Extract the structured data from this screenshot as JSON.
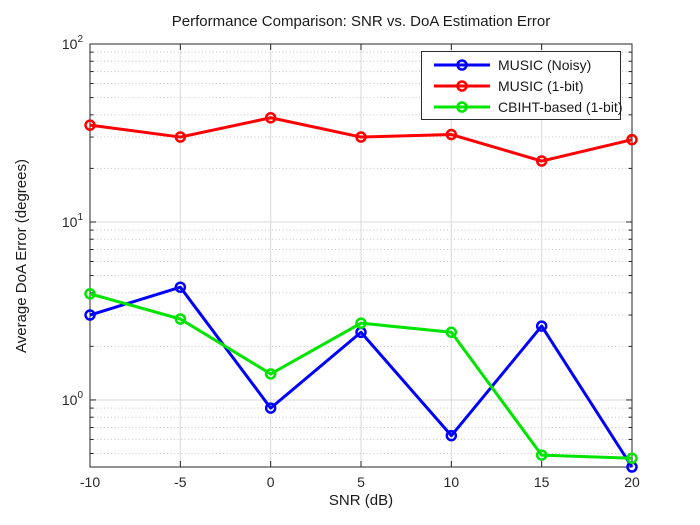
{
  "chart_data": {
    "type": "line",
    "title": "Performance Comparison: SNR vs. DoA Estimation Error",
    "xlabel": "SNR (dB)",
    "ylabel": "Average DoA Error (degrees)",
    "x": [
      -10,
      -5,
      0,
      5,
      10,
      15,
      20
    ],
    "x_ticks": [
      -10,
      -5,
      0,
      5,
      10,
      15,
      20
    ],
    "x_tick_labels": [
      "-10",
      "-5",
      "0",
      "5",
      "10",
      "15",
      "20"
    ],
    "xlim": [
      -10,
      20
    ],
    "y_scale": "log",
    "ylim": [
      0.42,
      100
    ],
    "y_major_ticks": [
      1,
      10,
      100
    ],
    "y_tick_labels": [
      "10^0",
      "10^1",
      "10^2"
    ],
    "grid": true,
    "minor_grid": true,
    "legend_position": "top-right",
    "series": [
      {
        "name": "MUSIC (Noisy)",
        "color": "#0000FF",
        "marker": "circle",
        "values": [
          3.0,
          4.3,
          0.9,
          2.4,
          0.63,
          2.6,
          0.42
        ]
      },
      {
        "name": "MUSIC (1-bit)",
        "color": "#FF0000",
        "marker": "circle",
        "values": [
          35,
          30,
          38.5,
          30,
          31,
          22,
          29
        ]
      },
      {
        "name": "CBIHT-based (1-bit)",
        "color": "#00E400",
        "marker": "circle",
        "values": [
          3.95,
          2.85,
          1.4,
          2.7,
          2.4,
          0.49,
          0.47
        ]
      }
    ],
    "style_colors": {
      "axis": "#262626",
      "text": "#262626",
      "major_grid": "#d9d9d9",
      "minor_grid": "#c4c4c4",
      "plot_background": "#ffffff",
      "legend_border": "#2b2b2b"
    }
  }
}
